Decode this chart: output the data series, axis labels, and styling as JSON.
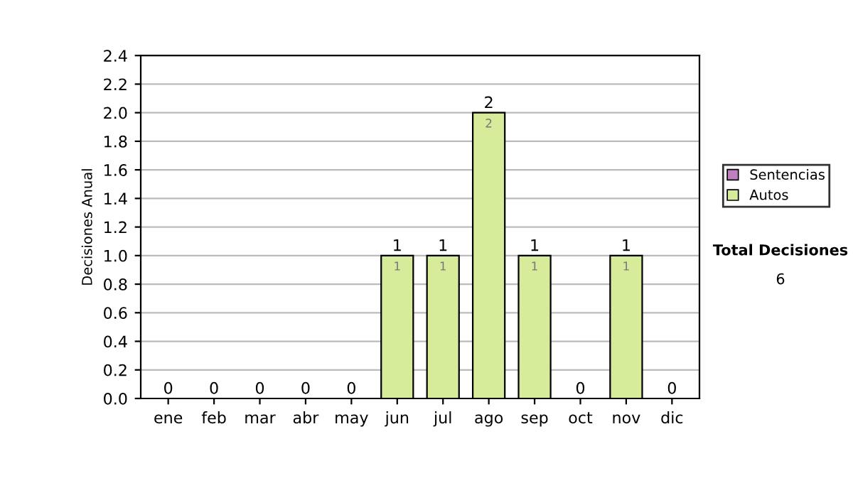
{
  "chart_data": {
    "type": "bar",
    "stacked": true,
    "ylabel": "Decisiones Anual",
    "categories": [
      "ene",
      "feb",
      "mar",
      "abr",
      "may",
      "jun",
      "jul",
      "ago",
      "sep",
      "oct",
      "nov",
      "dic"
    ],
    "series": [
      {
        "name": "Sentencias",
        "color": "#c080c0",
        "values": [
          0,
          0,
          0,
          0,
          0,
          0,
          0,
          0,
          0,
          0,
          0,
          0
        ]
      },
      {
        "name": "Autos",
        "color": "#d6ec9a",
        "values": [
          0,
          0,
          0,
          0,
          0,
          1,
          1,
          2,
          1,
          0,
          1,
          0
        ],
        "value_labels": [
          null,
          null,
          null,
          null,
          null,
          "1",
          "1",
          "2",
          "1",
          null,
          "1",
          null
        ]
      }
    ],
    "totals": [
      "0",
      "0",
      "0",
      "0",
      "0",
      "1",
      "1",
      "2",
      "1",
      "0",
      "1",
      "0"
    ],
    "ylim": [
      0,
      2.4
    ],
    "yticks": [
      "0.0",
      "0.2",
      "0.4",
      "0.6",
      "0.8",
      "1.0",
      "1.2",
      "1.4",
      "1.6",
      "1.8",
      "2.0",
      "2.2",
      "2.4"
    ],
    "grid": "y",
    "legend": "right",
    "annotations": [
      "Total Decisiones",
      "6"
    ]
  }
}
